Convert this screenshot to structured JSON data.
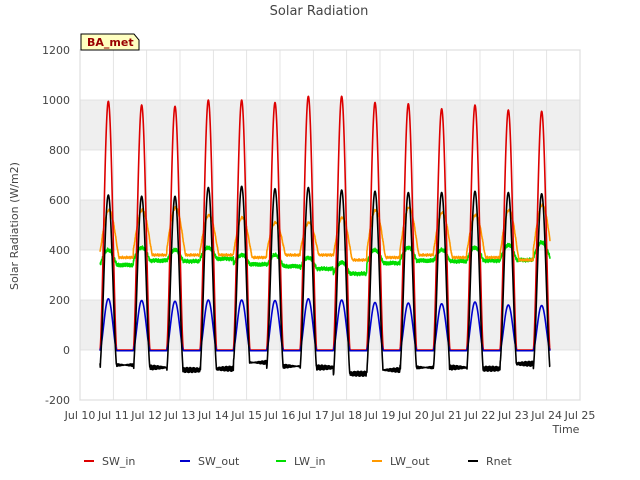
{
  "chart_data": {
    "type": "line",
    "title": "Solar Radiation",
    "xlabel": "Time",
    "ylabel": "Solar Radiation (W/m2)",
    "badge": "BA_met",
    "xlim": [
      10,
      25
    ],
    "ylim": [
      -200,
      1200
    ],
    "x_ticks": [
      {
        "v": 10,
        "label": "Jul 10"
      },
      {
        "v": 11,
        "label": "Jul 11"
      },
      {
        "v": 12,
        "label": "Jul 12"
      },
      {
        "v": 13,
        "label": "Jul 13"
      },
      {
        "v": 14,
        "label": "Jul 14"
      },
      {
        "v": 15,
        "label": "Jul 15"
      },
      {
        "v": 16,
        "label": "Jul 16"
      },
      {
        "v": 17,
        "label": "Jul 17"
      },
      {
        "v": 18,
        "label": "Jul 18"
      },
      {
        "v": 19,
        "label": "Jul 19"
      },
      {
        "v": 20,
        "label": "Jul 20"
      },
      {
        "v": 21,
        "label": "Jul 21"
      },
      {
        "v": 22,
        "label": "Jul 22"
      },
      {
        "v": 23,
        "label": "Jul 23"
      },
      {
        "v": 24,
        "label": "Jul 24"
      },
      {
        "v": 25,
        "label": "Jul 25"
      }
    ],
    "y_ticks": [
      {
        "v": -200,
        "label": "-200"
      },
      {
        "v": 0,
        "label": "0"
      },
      {
        "v": 200,
        "label": "200"
      },
      {
        "v": 400,
        "label": "400"
      },
      {
        "v": 600,
        "label": "600"
      },
      {
        "v": 800,
        "label": "800"
      },
      {
        "v": 1000,
        "label": "1000"
      },
      {
        "v": 1200,
        "label": "1200"
      }
    ],
    "data_start": 10.6,
    "data_end": 24.1,
    "day_starts": [
      10.6,
      11.6,
      12.6,
      13.6,
      14.6,
      15.6,
      16.6,
      17.6,
      18.6,
      19.6,
      20.6,
      21.6,
      22.6,
      23.6
    ],
    "series": [
      {
        "name": "SW_in",
        "color": "#dd0000",
        "daily_peaks": [
          995,
          980,
          975,
          1000,
          1000,
          990,
          1015,
          1015,
          990,
          985,
          965,
          980,
          960,
          955
        ]
      },
      {
        "name": "SW_out",
        "color": "#0000cc",
        "daily_peaks": [
          205,
          198,
          195,
          200,
          200,
          198,
          205,
          200,
          190,
          188,
          185,
          192,
          180,
          178
        ]
      },
      {
        "name": "LW_in",
        "color": "#00dd00",
        "daily_min": [
          320,
          340,
          340,
          350,
          330,
          320,
          310,
          290,
          330,
          340,
          340,
          340,
          340,
          350
        ],
        "daily_max": [
          400,
          410,
          400,
          410,
          380,
          380,
          370,
          350,
          400,
          410,
          400,
          410,
          420,
          430
        ]
      },
      {
        "name": "LW_out",
        "color": "#ff9900",
        "daily_min": [
          370,
          380,
          380,
          380,
          370,
          380,
          380,
          360,
          370,
          380,
          370,
          370,
          360,
          380
        ],
        "daily_max": [
          560,
          560,
          570,
          540,
          530,
          510,
          510,
          530,
          560,
          570,
          550,
          540,
          560,
          580
        ]
      },
      {
        "name": "Rnet",
        "color": "#000000",
        "daily_min": [
          -60,
          -70,
          -80,
          -75,
          -50,
          -65,
          -70,
          -95,
          -80,
          -70,
          -70,
          -75,
          -55,
          -65
        ],
        "daily_peaks": [
          620,
          615,
          615,
          650,
          655,
          645,
          650,
          640,
          635,
          630,
          630,
          635,
          630,
          625
        ]
      }
    ],
    "legend_position": "bottom",
    "grid": true
  }
}
